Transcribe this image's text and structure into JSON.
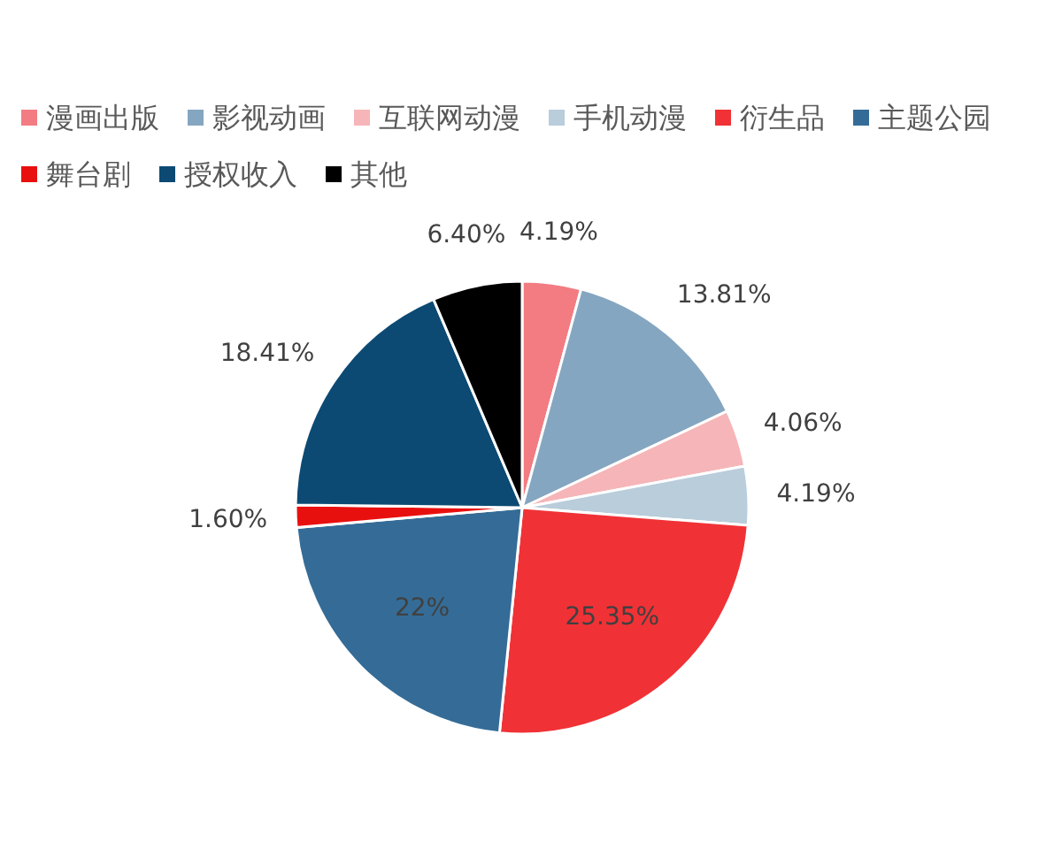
{
  "chart_data": {
    "type": "pie",
    "legend": "top",
    "categories": [
      "漫画出版",
      "影视动画",
      "互联网动漫",
      "手机动漫",
      "衍生品",
      "主题公园",
      "舞台剧",
      "授权收入",
      "其他"
    ],
    "values": [
      4.19,
      13.81,
      4.06,
      4.19,
      25.35,
      22,
      1.6,
      18.41,
      6.4
    ],
    "value_labels": [
      "4.19%",
      "13.81%",
      "4.06%",
      "4.19%",
      "25.35%",
      "22%",
      "1.60%",
      "18.41%",
      "6.40%"
    ],
    "colors": [
      "#f27c82",
      "#85a6c0",
      "#f6b5b8",
      "#b9cddb",
      "#f03236",
      "#356c97",
      "#e8100f",
      "#0c4a73",
      "#000000"
    ]
  }
}
